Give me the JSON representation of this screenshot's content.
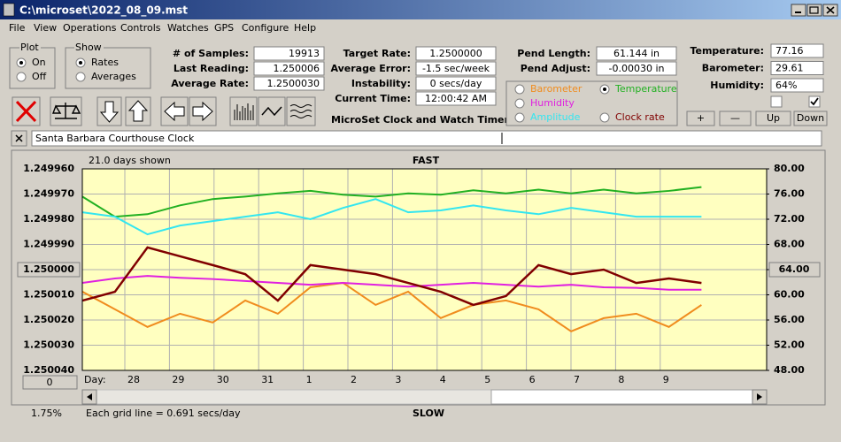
{
  "window": {
    "title": "C:\\microset\\2022_08_09.mst"
  },
  "menu": [
    "File",
    "View",
    "Operations",
    "Controls",
    "Watches",
    "GPS",
    "Configure",
    "Help"
  ],
  "plot_group": {
    "label": "Plot",
    "options": [
      "On",
      "Off"
    ]
  },
  "show_group": {
    "label": "Show",
    "options": [
      "Rates",
      "Averages"
    ]
  },
  "stats": [
    [
      "# of Samples:",
      "19913"
    ],
    [
      "Last Reading:",
      "1.250006"
    ],
    [
      "Average Rate:",
      "1.2500030"
    ]
  ],
  "timing": [
    [
      "Target Rate:",
      "1.2500000"
    ],
    [
      "Average Error:",
      "-1.5 sec/week"
    ],
    [
      "Instability:",
      "0 secs/day"
    ],
    [
      "Current Time:",
      "12:00:42 AM"
    ]
  ],
  "pendulum": [
    [
      "Pend Length:",
      "61.144 in"
    ],
    [
      "Pend Adjust:",
      "-0.00030 in"
    ]
  ],
  "environment": [
    [
      "Temperature:",
      "77.16"
    ],
    [
      "Barometer:",
      "29.61"
    ],
    [
      "Humidity:",
      "64%"
    ]
  ],
  "app_name": "MicroSet Clock and Watch Timer",
  "buttons": [
    "+",
    "—",
    "Up",
    "Down"
  ],
  "clock_name": "Santa Barbara Courthouse Clock",
  "chart_data": {
    "type": "line",
    "days_shown": "21.0 days shown",
    "top_label": "FAST",
    "bottom_label": "SLOW",
    "grid_note": "Each grid line = 0.691 secs/day",
    "percent": "1.75%",
    "day_axis_label": "Day:",
    "scroll_button": "0",
    "day_labels": [
      "28",
      "29",
      "30",
      "31",
      "1",
      "2",
      "3",
      "4",
      "5",
      "6",
      "7",
      "8",
      "9"
    ],
    "x": [
      0,
      1,
      2,
      3,
      4,
      5,
      6,
      7,
      8,
      9,
      10,
      11,
      12,
      13,
      14,
      15,
      16,
      17,
      18,
      19
    ],
    "xlim": [
      0,
      21
    ],
    "ylim": [
      1.25004,
      1.24996
    ],
    "yticks": [
      {
        "value": 1.24996,
        "label": "1.249960"
      },
      {
        "value": 1.24997,
        "label": "1.249970"
      },
      {
        "value": 1.24998,
        "label": "1.249980"
      },
      {
        "value": 1.24999,
        "label": "1.249990"
      },
      {
        "value": 1.25,
        "label": "1.250000"
      },
      {
        "value": 1.25001,
        "label": "1.250010"
      },
      {
        "value": 1.25002,
        "label": "1.250020"
      },
      {
        "value": 1.25003,
        "label": "1.250030"
      },
      {
        "value": 1.25004,
        "label": "1.250040"
      }
    ],
    "y2lim": [
      48,
      80
    ],
    "y2ticks": [
      {
        "value": 80,
        "label": "80.00"
      },
      {
        "value": 76,
        "label": "76.00"
      },
      {
        "value": 72,
        "label": "72.00"
      },
      {
        "value": 68,
        "label": "68.00"
      },
      {
        "value": 64,
        "label": "64.00"
      },
      {
        "value": 60,
        "label": "60.00"
      },
      {
        "value": 56,
        "label": "56.00"
      },
      {
        "value": 52,
        "label": "52.00"
      },
      {
        "value": 48,
        "label": "48.00"
      }
    ],
    "grid": true,
    "selected": "Temperature",
    "series": [
      {
        "name": "Barometer",
        "color": "#f08c1e",
        "axis": "y2",
        "values": [
          60.5,
          57.7,
          54.9,
          57.0,
          55.6,
          59.1,
          57.0,
          61.2,
          61.9,
          58.4,
          60.5,
          56.3,
          58.4,
          59.1,
          57.7,
          54.2,
          56.3,
          57.0,
          54.9,
          58.4
        ]
      },
      {
        "name": "Temperature",
        "color": "#22b022",
        "axis": "y2",
        "values": [
          75.6,
          72.4,
          72.8,
          74.2,
          75.2,
          75.6,
          76.1,
          76.5,
          75.9,
          75.6,
          76.1,
          75.9,
          76.6,
          76.1,
          76.7,
          76.1,
          76.7,
          76.1,
          76.5,
          77.1
        ]
      },
      {
        "name": "Humidity",
        "color": "#e020e0",
        "axis": "y2",
        "values": [
          61.9,
          62.6,
          63.0,
          62.7,
          62.5,
          62.2,
          61.9,
          61.6,
          61.9,
          61.6,
          61.3,
          61.6,
          61.9,
          61.6,
          61.3,
          61.6,
          61.2,
          61.1,
          60.8,
          60.8
        ]
      },
      {
        "name": "Amplitude",
        "color": "#33e6f0",
        "axis": "y2",
        "values": [
          73.1,
          72.4,
          69.6,
          71.0,
          71.7,
          72.4,
          73.1,
          72.0,
          73.8,
          75.2,
          73.1,
          73.4,
          74.2,
          73.4,
          72.8,
          73.8,
          73.1,
          72.4,
          72.4,
          72.4
        ]
      },
      {
        "name": "Clock rate",
        "color": "#800000",
        "axis": "y",
        "values": [
          1.2500123,
          1.2500088,
          1.2499912,
          1.2499947,
          1.2499982,
          1.2500018,
          1.2500123,
          1.2499982,
          1.25,
          1.2500018,
          1.2500053,
          1.2500088,
          1.250014,
          1.2500105,
          1.2499982,
          1.2500018,
          1.25,
          1.2500053,
          1.2500035,
          1.2500053
        ]
      }
    ]
  }
}
